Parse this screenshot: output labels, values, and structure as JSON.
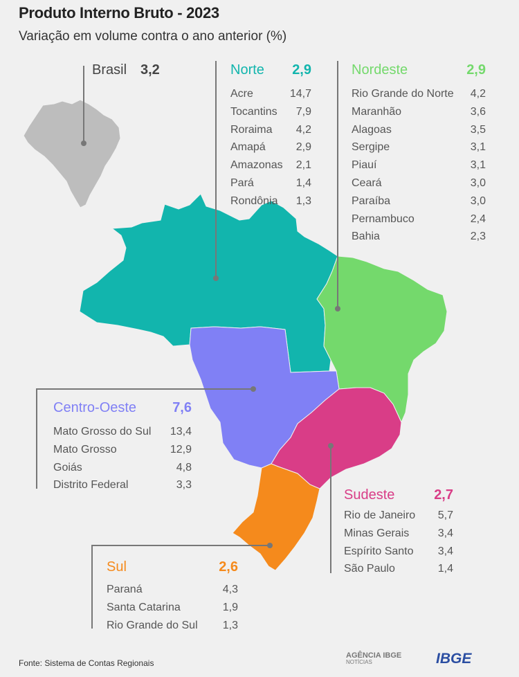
{
  "title": "Produto Interno Bruto - 2023",
  "subtitle": "Variação em volume contra o ano anterior (%)",
  "brasil": {
    "label": "Brasil",
    "value": "3,2"
  },
  "regions": {
    "norte": {
      "name": "Norte",
      "value": "2,9",
      "color": "#12b5ad",
      "states": [
        [
          "Acre",
          "14,7"
        ],
        [
          "Tocantins",
          "7,9"
        ],
        [
          "Roraima",
          "4,2"
        ],
        [
          "Amapá",
          "2,9"
        ],
        [
          "Amazonas",
          "2,1"
        ],
        [
          "Pará",
          "1,4"
        ],
        [
          "Rondônia",
          "1,3"
        ]
      ]
    },
    "nordeste": {
      "name": "Nordeste",
      "value": "2,9",
      "color": "#74d96c",
      "states": [
        [
          "Rio Grande do Norte",
          "4,2"
        ],
        [
          "Maranhão",
          "3,6"
        ],
        [
          "Alagoas",
          "3,5"
        ],
        [
          "Sergipe",
          "3,1"
        ],
        [
          "Piauí",
          "3,1"
        ],
        [
          "Ceará",
          "3,0"
        ],
        [
          "Paraíba",
          "3,0"
        ],
        [
          "Pernambuco",
          "2,4"
        ],
        [
          "Bahia",
          "2,3"
        ]
      ]
    },
    "centro_oeste": {
      "name": "Centro-Oeste",
      "value": "7,6",
      "color": "#8080f5",
      "states": [
        [
          "Mato Grosso do Sul",
          "13,4"
        ],
        [
          "Mato Grosso",
          "12,9"
        ],
        [
          "Goiás",
          "4,8"
        ],
        [
          "Distrito Federal",
          "3,3"
        ]
      ]
    },
    "sudeste": {
      "name": "Sudeste",
      "value": "2,7",
      "color": "#d93d87",
      "states": [
        [
          "Rio de Janeiro",
          "5,7"
        ],
        [
          "Minas Gerais",
          "3,4"
        ],
        [
          "Espírito Santo",
          "3,4"
        ],
        [
          "São Paulo",
          "1,4"
        ]
      ]
    },
    "sul": {
      "name": "Sul",
      "value": "2,6",
      "color": "#f58a1c",
      "states": [
        [
          "Paraná",
          "4,3"
        ],
        [
          "Santa Catarina",
          "1,9"
        ],
        [
          "Rio Grande do Sul",
          "1,3"
        ]
      ]
    }
  },
  "source": "Fonte: Sistema de Contas Regionais",
  "logos": {
    "agencia_1": "AGÊNCIA IBGE",
    "agencia_2": "NOTÍCIAS",
    "ibge": "IBGE"
  },
  "inset_color": "#bdbdbd"
}
